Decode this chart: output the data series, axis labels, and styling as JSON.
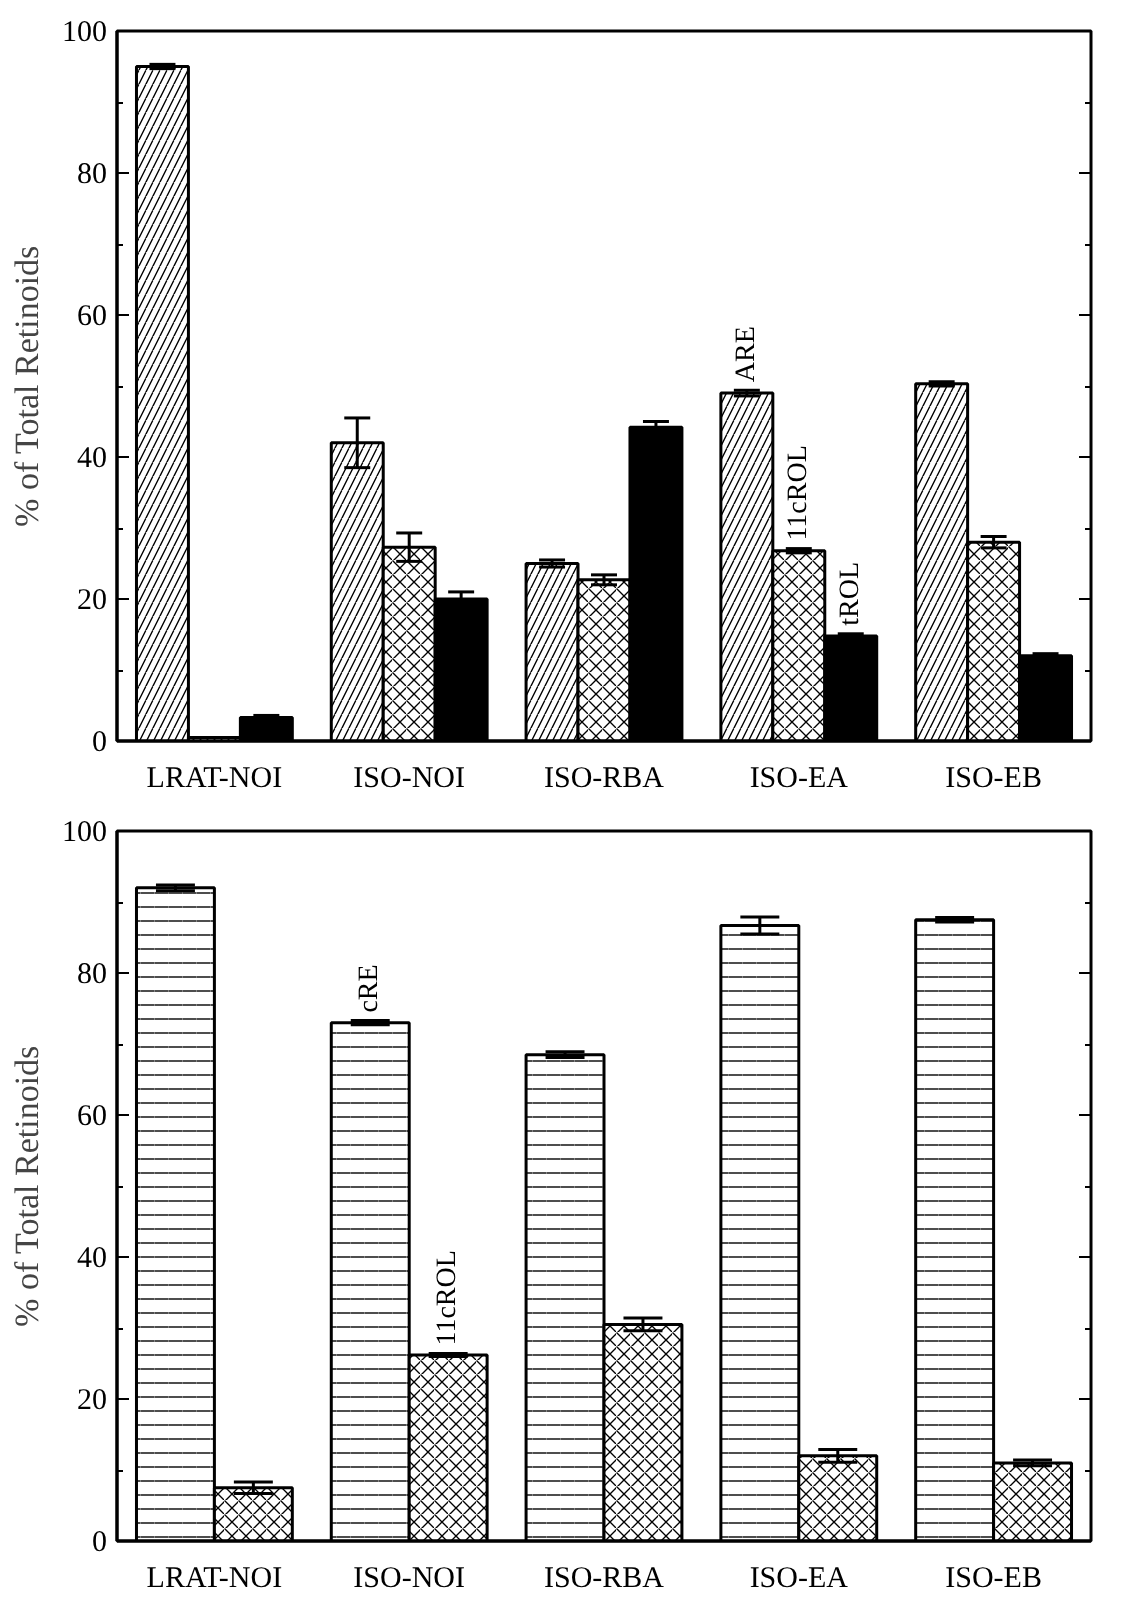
{
  "chart_data": [
    {
      "type": "bar",
      "ylabel": "% of Total Retinoids",
      "categories": [
        "LRAT-NOI",
        "ISO-NOI",
        "ISO-RBA",
        "ISO-EA",
        "ISO-EB"
      ],
      "ylim": [
        0,
        100
      ],
      "yticks": [
        0,
        20,
        40,
        60,
        80,
        100
      ],
      "grid": false,
      "series": [
        {
          "name": "ARE",
          "color": "#ffffff",
          "values": [
            95,
            42,
            25,
            49,
            50.3
          ],
          "errors": [
            0.3,
            3.5,
            0.5,
            0.4,
            0.3
          ]
        },
        {
          "name": "11cROL",
          "color": "#ffffff",
          "values": [
            0.5,
            27.3,
            22.7,
            26.8,
            28
          ],
          "errors": [
            null,
            2,
            0.7,
            0.3,
            0.8
          ]
        },
        {
          "name": "tROL",
          "color": "#000000",
          "values": [
            3.3,
            20,
            44.2,
            14.8,
            12
          ],
          "errors": [
            0.3,
            1,
            0.8,
            0.3,
            0.3
          ]
        }
      ]
    },
    {
      "type": "bar",
      "ylabel": "% of Total Retinoids",
      "categories": [
        "LRAT-NOI",
        "ISO-NOI",
        "ISO-RBA",
        "ISO-EA",
        "ISO-EB"
      ],
      "ylim": [
        0,
        100
      ],
      "yticks": [
        0,
        20,
        40,
        60,
        80,
        100
      ],
      "grid": false,
      "series": [
        {
          "name": "cRE",
          "color": "#ffffff",
          "values": [
            92,
            73,
            68.5,
            86.7,
            87.5
          ],
          "errors": [
            0.4,
            0.3,
            0.4,
            1.2,
            0.3
          ]
        },
        {
          "name": "11cROL",
          "color": "#ffffff",
          "values": [
            7.5,
            26.2,
            30.5,
            12,
            11
          ],
          "errors": [
            0.8,
            0.2,
            0.9,
            0.9,
            0.4
          ]
        }
      ]
    }
  ]
}
